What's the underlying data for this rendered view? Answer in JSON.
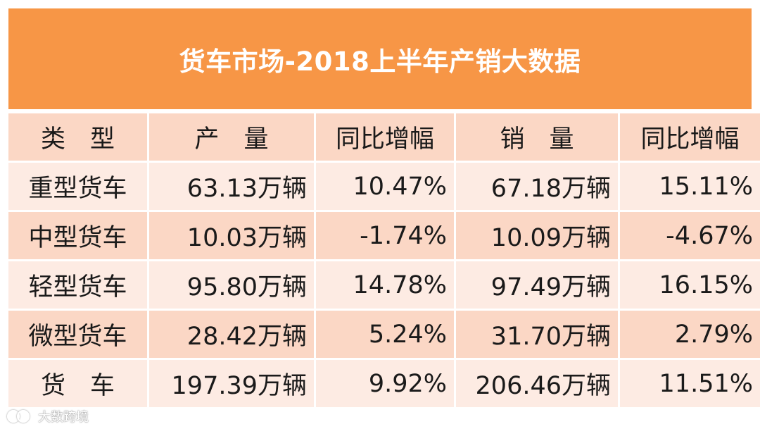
{
  "title": "货车市场-2018上半年产销大数据",
  "table": {
    "headers": [
      "类　型",
      "产　量",
      "同比增幅",
      "销　量",
      "同比增幅"
    ],
    "rows": [
      {
        "type": "重型货车",
        "production": "63.13万辆",
        "production_yoy": "10.47%",
        "sales": "67.18万辆",
        "sales_yoy": "15.11%"
      },
      {
        "type": "中型货车",
        "production": "10.03万辆",
        "production_yoy": "-1.74%",
        "sales": "10.09万辆",
        "sales_yoy": "-4.67%"
      },
      {
        "type": "轻型货车",
        "production": "95.80万辆",
        "production_yoy": "14.78%",
        "sales": "97.49万辆",
        "sales_yoy": "16.15%"
      },
      {
        "type": "微型货车",
        "production": "28.42万辆",
        "production_yoy": "5.24%",
        "sales": "31.70万辆",
        "sales_yoy": "2.79%"
      },
      {
        "type": "货　车",
        "production": "197.39万辆",
        "production_yoy": "9.92%",
        "sales": "206.46万辆",
        "sales_yoy": "11.51%"
      }
    ]
  },
  "watermark": {
    "text": "大数跨境"
  },
  "colors": {
    "title_bg": "#f79646",
    "row_dark": "#fbd7c5",
    "row_light": "#fdebe3"
  }
}
